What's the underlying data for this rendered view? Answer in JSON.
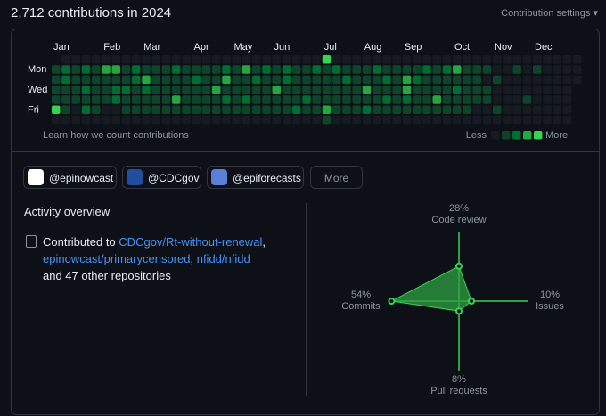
{
  "header": {
    "title": "2,712 contributions in 2024",
    "settings": "Contribution settings ▾"
  },
  "contribution_calendar": {
    "months": [
      "Jan",
      "Feb",
      "Mar",
      "Apr",
      "May",
      "Jun",
      "Jul",
      "Aug",
      "Sep",
      "Oct",
      "Nov",
      "Dec"
    ],
    "days": [
      "Mon",
      "Wed",
      "Fri"
    ],
    "level_colors": [
      "#161b22",
      "#0e4429",
      "#006d32",
      "#26a641",
      "#39d353"
    ],
    "weeks": [
      [
        null,
        1,
        1,
        1,
        1,
        4,
        0
      ],
      [
        0,
        2,
        2,
        1,
        1,
        1,
        0
      ],
      [
        0,
        1,
        1,
        1,
        1,
        0,
        0
      ],
      [
        0,
        2,
        1,
        2,
        1,
        2,
        0
      ],
      [
        0,
        1,
        1,
        1,
        1,
        1,
        0
      ],
      [
        0,
        3,
        1,
        1,
        1,
        0,
        0
      ],
      [
        0,
        3,
        1,
        2,
        2,
        0,
        0
      ],
      [
        0,
        1,
        1,
        2,
        1,
        1,
        0
      ],
      [
        0,
        2,
        2,
        1,
        1,
        1,
        0
      ],
      [
        0,
        1,
        3,
        2,
        1,
        1,
        0
      ],
      [
        0,
        1,
        1,
        1,
        1,
        1,
        0
      ],
      [
        0,
        1,
        1,
        1,
        1,
        1,
        0
      ],
      [
        0,
        2,
        1,
        1,
        3,
        1,
        0
      ],
      [
        0,
        1,
        1,
        1,
        1,
        1,
        0
      ],
      [
        0,
        1,
        2,
        1,
        1,
        1,
        0
      ],
      [
        0,
        1,
        1,
        1,
        1,
        1,
        0
      ],
      [
        0,
        1,
        1,
        3,
        1,
        1,
        0
      ],
      [
        0,
        2,
        3,
        1,
        2,
        1,
        0
      ],
      [
        0,
        1,
        1,
        1,
        1,
        1,
        0
      ],
      [
        0,
        3,
        1,
        1,
        2,
        1,
        0
      ],
      [
        0,
        1,
        2,
        1,
        1,
        1,
        0
      ],
      [
        0,
        2,
        1,
        1,
        1,
        1,
        0
      ],
      [
        0,
        1,
        1,
        3,
        1,
        1,
        0
      ],
      [
        0,
        2,
        2,
        1,
        1,
        1,
        0
      ],
      [
        0,
        1,
        1,
        1,
        1,
        2,
        0
      ],
      [
        0,
        1,
        1,
        1,
        2,
        1,
        0
      ],
      [
        0,
        2,
        1,
        1,
        1,
        1,
        0
      ],
      [
        4,
        1,
        1,
        1,
        1,
        3,
        1
      ],
      [
        0,
        2,
        1,
        1,
        1,
        1,
        0
      ],
      [
        0,
        1,
        2,
        1,
        1,
        1,
        0
      ],
      [
        0,
        1,
        1,
        1,
        1,
        1,
        0
      ],
      [
        0,
        1,
        1,
        3,
        1,
        2,
        0
      ],
      [
        0,
        2,
        1,
        1,
        1,
        1,
        0
      ],
      [
        0,
        1,
        2,
        1,
        2,
        1,
        0
      ],
      [
        0,
        1,
        1,
        1,
        1,
        1,
        0
      ],
      [
        0,
        1,
        3,
        3,
        2,
        1,
        0
      ],
      [
        0,
        1,
        2,
        1,
        1,
        1,
        0
      ],
      [
        0,
        2,
        1,
        1,
        1,
        1,
        0
      ],
      [
        0,
        1,
        1,
        1,
        3,
        1,
        0
      ],
      [
        0,
        2,
        1,
        1,
        1,
        1,
        0
      ],
      [
        0,
        3,
        1,
        2,
        1,
        1,
        0
      ],
      [
        0,
        1,
        1,
        1,
        1,
        1,
        0
      ],
      [
        0,
        1,
        1,
        1,
        1,
        0,
        0
      ],
      [
        0,
        1,
        0,
        1,
        1,
        0,
        0
      ],
      [
        0,
        0,
        1,
        0,
        0,
        1,
        0
      ],
      [
        0,
        0,
        0,
        0,
        0,
        0,
        0
      ],
      [
        0,
        1,
        0,
        0,
        0,
        0,
        0
      ],
      [
        0,
        0,
        0,
        0,
        1,
        0,
        0
      ],
      [
        0,
        1,
        0,
        0,
        0,
        0,
        0
      ],
      [
        0,
        0,
        0,
        0,
        0,
        0,
        0
      ],
      [
        0,
        0,
        0,
        0,
        0,
        0,
        0
      ],
      [
        0,
        0,
        0,
        0,
        0,
        0,
        0
      ],
      [
        0,
        0,
        0,
        null,
        null,
        null,
        null
      ]
    ],
    "learn": "Learn how we count contributions",
    "legend_low": "Less",
    "legend_high": "More"
  },
  "organizations": [
    "@epinowcast",
    "@CDCgov",
    "@epiforecasts"
  ],
  "more": "More",
  "activity": {
    "title": "Activity overview",
    "prefix": "Contributed to",
    "repos": [
      "CDCgov/Rt-without-renewal",
      "epinowcast/primarycensored",
      "nfidd/nfidd"
    ],
    "separator": ",",
    "suffix": "and 47 other repositories",
    "items": [
      {
        "name": "Code review",
        "value": 28,
        "value_label": "28%"
      },
      {
        "name": "Issues",
        "value": 10,
        "value_label": "10%"
      },
      {
        "name": "Pull requests",
        "value": 8,
        "value_label": "8%"
      },
      {
        "name": "Commits",
        "value": 54,
        "value_label": "54%"
      }
    ]
  }
}
